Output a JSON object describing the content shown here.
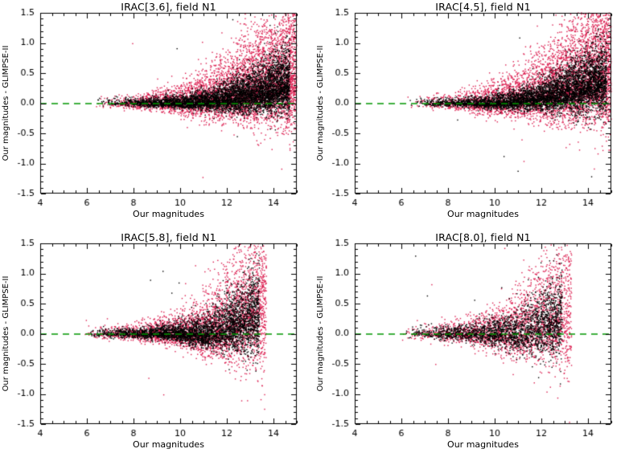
{
  "figure": {
    "background": "#ffffff",
    "description": "2x2 grid of photometric comparison scatter plots, field N1"
  },
  "chart_data": [
    {
      "type": "scatter",
      "title": "IRAC[3.6], field N1",
      "xlabel": "Our magnitudes",
      "ylabel": "Our magnitudes - GLIMPSE-II",
      "xlim": [
        4,
        15
      ],
      "ylim": [
        -1.5,
        1.5
      ],
      "xticks": [
        4,
        6,
        8,
        10,
        12,
        14
      ],
      "xtick_labels": [
        "4",
        "6",
        "8",
        "10",
        "12",
        "14"
      ],
      "yticks": [
        -1.5,
        -1.0,
        -0.5,
        0.0,
        0.5,
        1.0,
        1.5
      ],
      "ytick_labels": [
        "-1.5",
        "-1.0",
        "-0.5",
        "0.0",
        "0.5",
        "1.0",
        "1.5"
      ],
      "xminor": 0.5,
      "yminor": 0.1,
      "grid": false,
      "legend": null,
      "zero_line": {
        "y": 0,
        "color": "#009600",
        "dash": [
          8,
          6
        ]
      },
      "point_colors": {
        "black_series": "#000000",
        "red_series": "#dc1e50"
      },
      "scatter": {
        "seed": 11,
        "series": [
          {
            "name": "red-points",
            "color": "#dc1e50",
            "n": 5200,
            "xmin": 6.2,
            "xmax": 15.0,
            "xpow": 0.42,
            "sig0": 0.035,
            "sigA": 0.42,
            "sigp": 2.2,
            "skewUp": 1.7,
            "ux0": 8.5,
            "uamp": 0.5,
            "upow": 2.2,
            "ofrac": 0.002
          },
          {
            "name": "black-points",
            "color": "#000000",
            "n": 5000,
            "xmin": 6.3,
            "xmax": 14.7,
            "xpow": 0.45,
            "sig0": 0.025,
            "sigA": 0.22,
            "sigp": 2.8,
            "skewUp": 1.5,
            "ux0": 9.5,
            "uamp": 0.32,
            "upow": 2.2,
            "ofrac": 0.002
          }
        ]
      }
    },
    {
      "type": "scatter",
      "title": "IRAC[4.5], field N1",
      "xlabel": "Our magnitudes",
      "ylabel": "Our magnitudes - GLIMPSE-II",
      "xlim": [
        4,
        15
      ],
      "ylim": [
        -1.5,
        1.5
      ],
      "xticks": [
        4,
        6,
        8,
        10,
        12,
        14
      ],
      "xtick_labels": [
        "4",
        "6",
        "8",
        "10",
        "12",
        "14"
      ],
      "yticks": [
        -1.5,
        -1.0,
        -0.5,
        0.0,
        0.5,
        1.0,
        1.5
      ],
      "ytick_labels": [
        "-1.5",
        "-1.0",
        "-0.5",
        "0.0",
        "0.5",
        "1.0",
        "1.5"
      ],
      "xminor": 0.5,
      "yminor": 0.1,
      "grid": false,
      "legend": null,
      "zero_line": {
        "y": 0,
        "color": "#009600",
        "dash": [
          8,
          6
        ]
      },
      "point_colors": {
        "black_series": "#000000",
        "red_series": "#dc1e50"
      },
      "scatter": {
        "seed": 22,
        "series": [
          {
            "name": "red-points",
            "color": "#dc1e50",
            "n": 5200,
            "xmin": 6.2,
            "xmax": 15.0,
            "xpow": 0.42,
            "sig0": 0.035,
            "sigA": 0.45,
            "sigp": 2.2,
            "skewUp": 1.7,
            "ux0": 8.8,
            "uamp": 0.6,
            "upow": 2.0,
            "ofrac": 0.002
          },
          {
            "name": "black-points",
            "color": "#000000",
            "n": 4800,
            "xmin": 6.3,
            "xmax": 14.8,
            "xpow": 0.45,
            "sig0": 0.025,
            "sigA": 0.24,
            "sigp": 2.8,
            "skewUp": 1.5,
            "ux0": 9.5,
            "uamp": 0.38,
            "upow": 2.0,
            "ofrac": 0.002
          }
        ]
      }
    },
    {
      "type": "scatter",
      "title": "IRAC[5.8], field N1",
      "xlabel": "Our magnitudes",
      "ylabel": "Our magnitudes - GLIMPSE-II",
      "xlim": [
        4,
        15
      ],
      "ylim": [
        -1.5,
        1.5
      ],
      "xticks": [
        4,
        6,
        8,
        10,
        12,
        14
      ],
      "xtick_labels": [
        "4",
        "6",
        "8",
        "10",
        "12",
        "14"
      ],
      "yticks": [
        -1.5,
        -1.0,
        -0.5,
        0.0,
        0.5,
        1.0,
        1.5
      ],
      "ytick_labels": [
        "-1.5",
        "-1.0",
        "-0.5",
        "0.0",
        "0.5",
        "1.0",
        "1.5"
      ],
      "xminor": 0.5,
      "yminor": 0.1,
      "grid": false,
      "legend": null,
      "zero_line": {
        "y": 0,
        "color": "#009600",
        "dash": [
          8,
          6
        ]
      },
      "point_colors": {
        "black_series": "#000000",
        "red_series": "#dc1e50"
      },
      "scatter": {
        "seed": 33,
        "series": [
          {
            "name": "red-points",
            "color": "#dc1e50",
            "n": 3600,
            "xmin": 5.8,
            "xmax": 13.7,
            "xpow": 0.48,
            "sig0": 0.04,
            "sigA": 0.5,
            "sigp": 3.0,
            "skewUp": 1.7,
            "ux0": 10.8,
            "uamp": 0.55,
            "upow": 1.6,
            "ofrac": 0.003
          },
          {
            "name": "black-points",
            "color": "#000000",
            "n": 3400,
            "xmin": 6.0,
            "xmax": 13.4,
            "xpow": 0.5,
            "sig0": 0.03,
            "sigA": 0.3,
            "sigp": 3.2,
            "skewUp": 1.4,
            "ux0": 11.0,
            "uamp": 0.3,
            "upow": 1.6,
            "ofrac": 0.003
          }
        ]
      }
    },
    {
      "type": "scatter",
      "title": "IRAC[8.0], field N1",
      "xlabel": "Our magnitudes",
      "ylabel": "Our magnitudes - GLIMPSE-II",
      "xlim": [
        4,
        15
      ],
      "ylim": [
        -1.5,
        1.5
      ],
      "xticks": [
        4,
        6,
        8,
        10,
        12,
        14
      ],
      "xtick_labels": [
        "4",
        "6",
        "8",
        "10",
        "12",
        "14"
      ],
      "yticks": [
        -1.5,
        -1.0,
        -0.5,
        0.0,
        0.5,
        1.0,
        1.5
      ],
      "ytick_labels": [
        "-1.5",
        "-1.0",
        "-0.5",
        "0.0",
        "0.5",
        "1.0",
        "1.5"
      ],
      "xminor": 0.5,
      "yminor": 0.1,
      "grid": false,
      "legend": null,
      "zero_line": {
        "y": 0,
        "color": "#009600",
        "dash": [
          8,
          6
        ]
      },
      "point_colors": {
        "black_series": "#000000",
        "red_series": "#dc1e50"
      },
      "scatter": {
        "seed": 44,
        "series": [
          {
            "name": "red-points",
            "color": "#dc1e50",
            "n": 2500,
            "xmin": 5.9,
            "xmax": 13.3,
            "xpow": 0.48,
            "sig0": 0.05,
            "sigA": 0.5,
            "sigp": 2.8,
            "skewUp": 1.6,
            "ux0": 10.6,
            "uamp": 0.5,
            "upow": 1.6,
            "ofrac": 0.004
          },
          {
            "name": "black-points",
            "color": "#000000",
            "n": 2100,
            "xmin": 6.1,
            "xmax": 12.9,
            "xpow": 0.5,
            "sig0": 0.04,
            "sigA": 0.3,
            "sigp": 3.0,
            "skewUp": 1.4,
            "ux0": 10.8,
            "uamp": 0.3,
            "upow": 1.6,
            "ofrac": 0.004
          }
        ]
      }
    }
  ]
}
